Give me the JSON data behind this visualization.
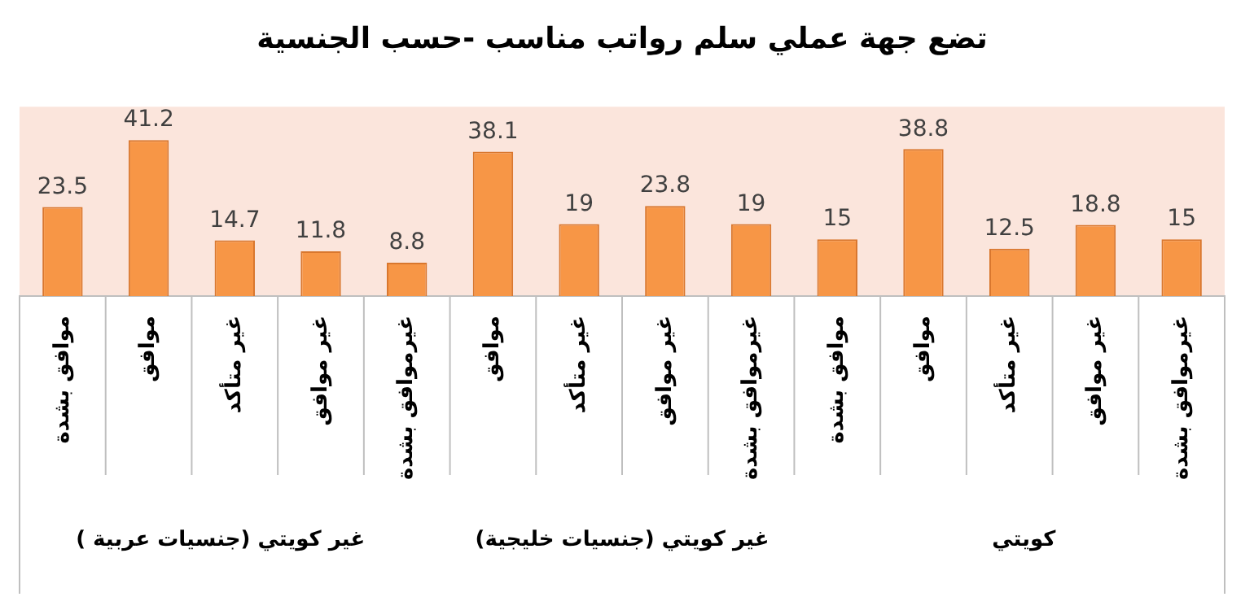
{
  "chart_data": {
    "type": "bar",
    "title": "تضع جهة عملي سلم رواتب مناسب -حسب الجنسية",
    "categories": [
      "موافق بشدة",
      "موافق",
      "غير متأكد",
      "غير موافق",
      "غيرموافق بشدة",
      "موافق",
      "غير متأكد",
      "غير موافق",
      "غيرموافق بشدة",
      "موافق بشدة",
      "موافق",
      "غير متأكد",
      "غير موافق",
      "غيرموافق بشدة"
    ],
    "values": [
      23.5,
      41.2,
      14.7,
      11.8,
      8.8,
      38.1,
      19,
      23.8,
      19,
      15,
      38.8,
      12.5,
      18.8,
      15
    ],
    "color": "#f79646",
    "data_labels": true,
    "grid": false,
    "legend": false,
    "annotations": [
      "غير كويتي (جنسيات عربية )",
      "غير كويتي (جنسيات خليجية)",
      "كويتي"
    ]
  }
}
